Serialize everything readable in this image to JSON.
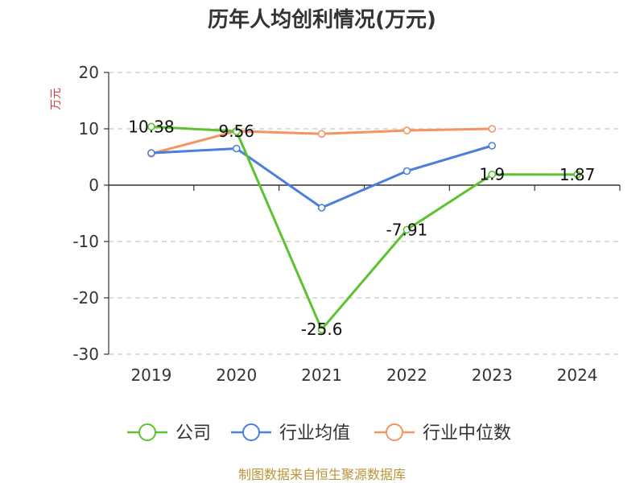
{
  "chart_data": {
    "type": "line",
    "title": "历年人均创利情况(万元)",
    "ylabel": "万元",
    "xlabel": "",
    "categories": [
      "2019",
      "2020",
      "2021",
      "2022",
      "2023",
      "2024"
    ],
    "ylim": [
      -30,
      20
    ],
    "yticks": [
      20,
      10,
      0,
      -10,
      -20,
      -30
    ],
    "grid": true,
    "legend_position": "bottom",
    "series": [
      {
        "name": "公司",
        "color": "#5cc22e",
        "values": [
          10.38,
          9.56,
          -25.6,
          -7.91,
          1.9,
          1.87
        ],
        "labels": [
          "10.38",
          "9.56",
          "-25.6",
          "-7.91",
          "1.9",
          "1.87"
        ]
      },
      {
        "name": "行业均值",
        "color": "#4a7fdc",
        "values": [
          5.7,
          6.5,
          -4.0,
          2.5,
          7.0,
          null
        ]
      },
      {
        "name": "行业中位数",
        "color": "#f39462",
        "values": [
          5.6,
          9.6,
          9.1,
          9.7,
          10.0,
          null
        ]
      }
    ],
    "source": "制图数据来自恒生聚源数据库"
  }
}
